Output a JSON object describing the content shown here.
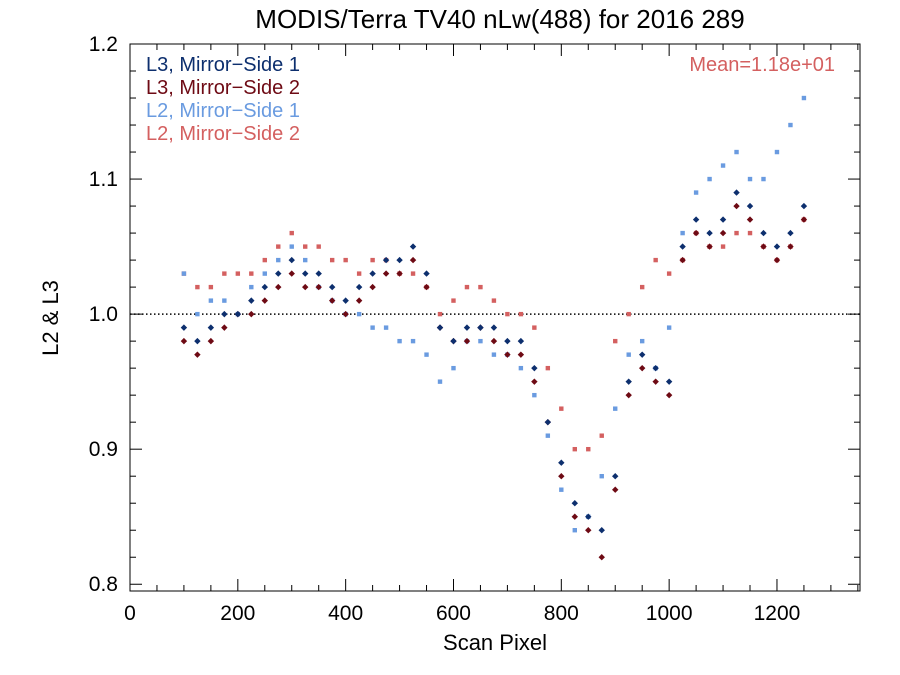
{
  "chart_data": {
    "type": "scatter",
    "title": "MODIS/Terra TV40 nLw(488) for 2016 289",
    "xlabel": "Scan Pixel",
    "ylabel": "L2 & L3",
    "xlim": [
      0,
      1354
    ],
    "ylim": [
      0.795,
      1.2
    ],
    "xticks": [
      0,
      200,
      400,
      600,
      800,
      1000,
      1200
    ],
    "xtick_labels": [
      "0",
      "200",
      "400",
      "600",
      "800",
      "1000",
      "1200"
    ],
    "yticks": [
      0.8,
      0.9,
      1.0,
      1.1,
      1.2
    ],
    "ytick_labels": [
      "0.8",
      "0.9",
      "1.0",
      "1.1",
      "1.2"
    ],
    "reference_line": 1.0,
    "annotation": "Mean=1.18e+01",
    "annotation_color": "#d46060",
    "legend_position": "top-left",
    "series": [
      {
        "name": "L3, Mirror−Side 1",
        "color": "#0d2f6e",
        "marker": "diamond",
        "x": [
          100,
          125,
          150,
          175,
          200,
          225,
          250,
          275,
          300,
          325,
          350,
          375,
          400,
          425,
          450,
          475,
          500,
          525,
          550,
          575,
          600,
          625,
          650,
          675,
          700,
          725,
          750,
          775,
          800,
          825,
          850,
          875,
          900,
          925,
          950,
          975,
          1000,
          1025,
          1050,
          1075,
          1100,
          1125,
          1150,
          1175,
          1200,
          1225,
          1250
        ],
        "y": [
          0.99,
          0.98,
          0.99,
          1.0,
          1.0,
          1.01,
          1.02,
          1.03,
          1.04,
          1.03,
          1.03,
          1.02,
          1.01,
          1.02,
          1.03,
          1.04,
          1.04,
          1.05,
          1.03,
          0.99,
          0.98,
          0.99,
          0.99,
          0.99,
          0.98,
          0.98,
          0.96,
          0.92,
          0.89,
          0.86,
          0.85,
          0.84,
          0.88,
          0.95,
          0.97,
          0.96,
          0.95,
          1.05,
          1.07,
          1.06,
          1.07,
          1.09,
          1.08,
          1.06,
          1.05,
          1.06,
          1.08
        ]
      },
      {
        "name": "L3, Mirror−Side 2",
        "color": "#6e0a14",
        "marker": "diamond",
        "x": [
          100,
          125,
          150,
          175,
          200,
          225,
          250,
          275,
          300,
          325,
          350,
          375,
          400,
          425,
          450,
          475,
          500,
          525,
          550,
          575,
          600,
          625,
          650,
          675,
          700,
          725,
          750,
          775,
          800,
          825,
          850,
          875,
          900,
          925,
          950,
          975,
          1000,
          1025,
          1050,
          1075,
          1100,
          1125,
          1150,
          1175,
          1200,
          1225,
          1250
        ],
        "y": [
          0.98,
          0.97,
          0.98,
          0.99,
          1.0,
          1.0,
          1.01,
          1.02,
          1.03,
          1.02,
          1.02,
          1.01,
          1.0,
          1.01,
          1.02,
          1.03,
          1.03,
          1.04,
          1.02,
          0.99,
          0.98,
          0.98,
          0.99,
          0.98,
          0.97,
          0.97,
          0.95,
          0.92,
          0.88,
          0.85,
          0.84,
          0.82,
          0.87,
          0.94,
          0.96,
          0.95,
          0.94,
          1.04,
          1.06,
          1.05,
          1.06,
          1.08,
          1.07,
          1.05,
          1.04,
          1.05,
          1.07
        ]
      },
      {
        "name": "L2, Mirror−Side 1",
        "color": "#6a9be0",
        "marker": "square",
        "x": [
          100,
          125,
          150,
          175,
          200,
          225,
          250,
          275,
          300,
          325,
          350,
          375,
          400,
          425,
          450,
          475,
          500,
          525,
          550,
          575,
          600,
          625,
          650,
          675,
          700,
          725,
          750,
          775,
          800,
          825,
          850,
          875,
          900,
          925,
          950,
          975,
          1000,
          1025,
          1050,
          1075,
          1100,
          1125,
          1150,
          1175,
          1200,
          1225,
          1250
        ],
        "y": [
          1.03,
          1.0,
          1.01,
          1.01,
          1.0,
          1.02,
          1.03,
          1.04,
          1.05,
          1.04,
          1.02,
          1.01,
          1.0,
          1.0,
          0.99,
          0.99,
          0.98,
          0.98,
          0.97,
          0.95,
          0.96,
          0.98,
          0.98,
          0.97,
          0.97,
          0.96,
          0.94,
          0.91,
          0.87,
          0.84,
          0.85,
          0.88,
          0.93,
          0.97,
          0.98,
          0.96,
          0.99,
          1.06,
          1.09,
          1.1,
          1.11,
          1.12,
          1.1,
          1.1,
          1.12,
          1.14,
          1.16
        ]
      },
      {
        "name": "L2, Mirror−Side 2",
        "color": "#d46060",
        "marker": "square",
        "x": [
          100,
          125,
          150,
          175,
          200,
          225,
          250,
          275,
          300,
          325,
          350,
          375,
          400,
          425,
          450,
          475,
          500,
          525,
          550,
          575,
          600,
          625,
          650,
          675,
          700,
          725,
          750,
          775,
          800,
          825,
          850,
          875,
          900,
          925,
          950,
          975,
          1000,
          1025,
          1050,
          1075,
          1100,
          1125,
          1150,
          1175,
          1200,
          1225,
          1250
        ],
        "y": [
          1.03,
          1.02,
          1.02,
          1.03,
          1.03,
          1.03,
          1.04,
          1.05,
          1.06,
          1.05,
          1.05,
          1.04,
          1.04,
          1.03,
          1.04,
          1.04,
          1.03,
          1.03,
          1.02,
          1.0,
          1.01,
          1.02,
          1.02,
          1.01,
          1.0,
          1.0,
          0.99,
          0.96,
          0.93,
          0.9,
          0.9,
          0.91,
          0.98,
          1.0,
          1.02,
          1.04,
          1.03,
          1.04,
          1.06,
          1.05,
          1.05,
          1.06,
          1.06,
          1.05,
          1.04,
          1.05,
          1.07
        ]
      }
    ]
  }
}
